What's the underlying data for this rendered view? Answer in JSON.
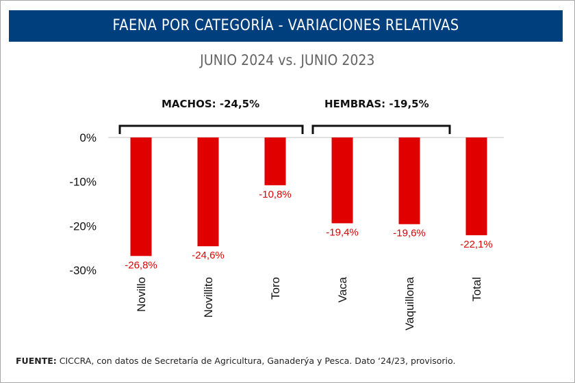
{
  "header": {
    "title": "FAENA POR CATEGORÍA - VARIACIONES RELATIVAS",
    "subtitle": "JUNIO 2024 vs. JUNIO 2023"
  },
  "groups": [
    {
      "label": "MACHOS: -24,5%",
      "members": [
        "Novillo",
        "Novillito",
        "Toro"
      ]
    },
    {
      "label": "HEMBRAS: -19,5%",
      "members": [
        "Vaca",
        "Vaquillona"
      ]
    }
  ],
  "footer": {
    "source_label": "FUENTE:",
    "source_text": " CICCRA, con datos de Secretaría de Agricultura, Ganaderýa y Pesca. Dato ‘24/23, provisorio."
  },
  "colors": {
    "banner": "#003f7d",
    "bar": "#e00000",
    "label": "#e00000",
    "axis": "#d9d9d9"
  },
  "chart_data": {
    "type": "bar",
    "title": "FAENA POR CATEGORÍA - VARIACIONES RELATIVAS",
    "subtitle": "JUNIO 2024 vs. JUNIO 2023",
    "xlabel": "",
    "ylabel": "",
    "categories": [
      "Novillo",
      "Novillito",
      "Toro",
      "Vaca",
      "Vaquillona",
      "Total"
    ],
    "values": [
      -26.8,
      -24.6,
      -10.8,
      -19.4,
      -19.6,
      -22.1
    ],
    "data_labels": [
      "-26,8%",
      "-24,6%",
      "-10,8%",
      "-19,4%",
      "-19,6%",
      "-22,1%"
    ],
    "ylim": [
      -30,
      0
    ],
    "yticks": [
      0,
      -10,
      -20,
      -30
    ],
    "ytick_labels": [
      "0%",
      "-10%",
      "-20%",
      "-30%"
    ],
    "grid": false,
    "legend": "none",
    "annotations": [
      "MACHOS: -24,5%",
      "HEMBRAS: -19,5%"
    ]
  }
}
